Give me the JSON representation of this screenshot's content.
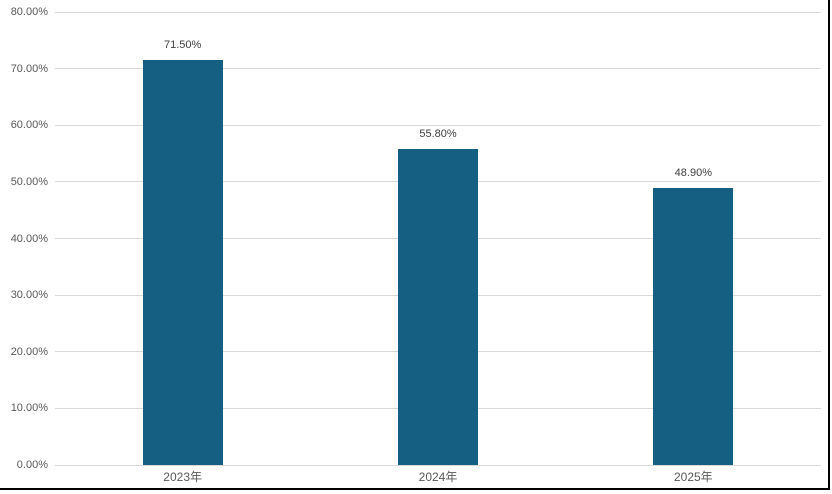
{
  "chart_data": {
    "type": "bar",
    "title": "",
    "xlabel": "",
    "ylabel": "",
    "categories": [
      "2023年",
      "2024年",
      "2025年"
    ],
    "values": [
      71.5,
      55.8,
      48.9
    ],
    "value_labels": [
      "71.50%",
      "55.80%",
      "48.90%"
    ],
    "ylim": [
      0,
      80
    ],
    "ytick_step": 10,
    "ytick_labels": [
      "0.00%",
      "10.00%",
      "20.00%",
      "30.00%",
      "40.00%",
      "50.00%",
      "60.00%",
      "70.00%",
      "80.00%"
    ],
    "grid": true,
    "legend": false,
    "bar_color": "#156082",
    "gridline_color": "#d9d9d9",
    "axis_label_color": "#595959",
    "data_label_color": "#404040",
    "background_color": "#ffffff",
    "frame_border_color": "#000000"
  }
}
